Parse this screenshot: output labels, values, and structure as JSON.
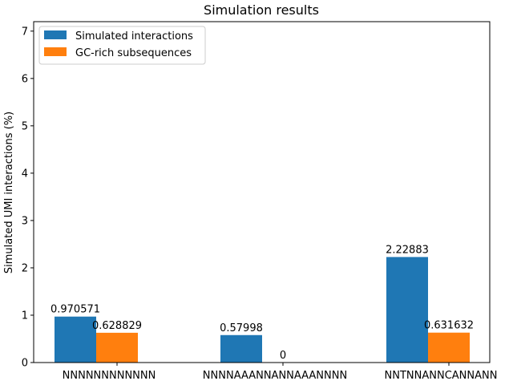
{
  "chart_data": {
    "type": "bar",
    "title": "Simulation results",
    "xlabel": "",
    "ylabel": "Simulated UMI interactions (%)",
    "categories": [
      "NNNNNNNNNNNN",
      "NNNNAAANNANNAAANNNN",
      "NNTNNANNCANNANN"
    ],
    "series": [
      {
        "name": "Simulated interactions",
        "values": [
          0.970571,
          0.57998,
          2.22883
        ],
        "labels": [
          "0.970571",
          "0.57998",
          "2.22883"
        ],
        "color": "#1f77b4"
      },
      {
        "name": "GC-rich subsequences",
        "values": [
          0.628829,
          0,
          0.631632
        ],
        "labels": [
          "0.628829",
          "0",
          "0.631632"
        ],
        "color": "#ff7f0e"
      }
    ],
    "ylim": [
      0,
      7.2
    ],
    "yticks": [
      "0",
      "1",
      "2",
      "3",
      "4",
      "5",
      "6",
      "7"
    ],
    "grid": false,
    "legend_position": "top-left"
  }
}
